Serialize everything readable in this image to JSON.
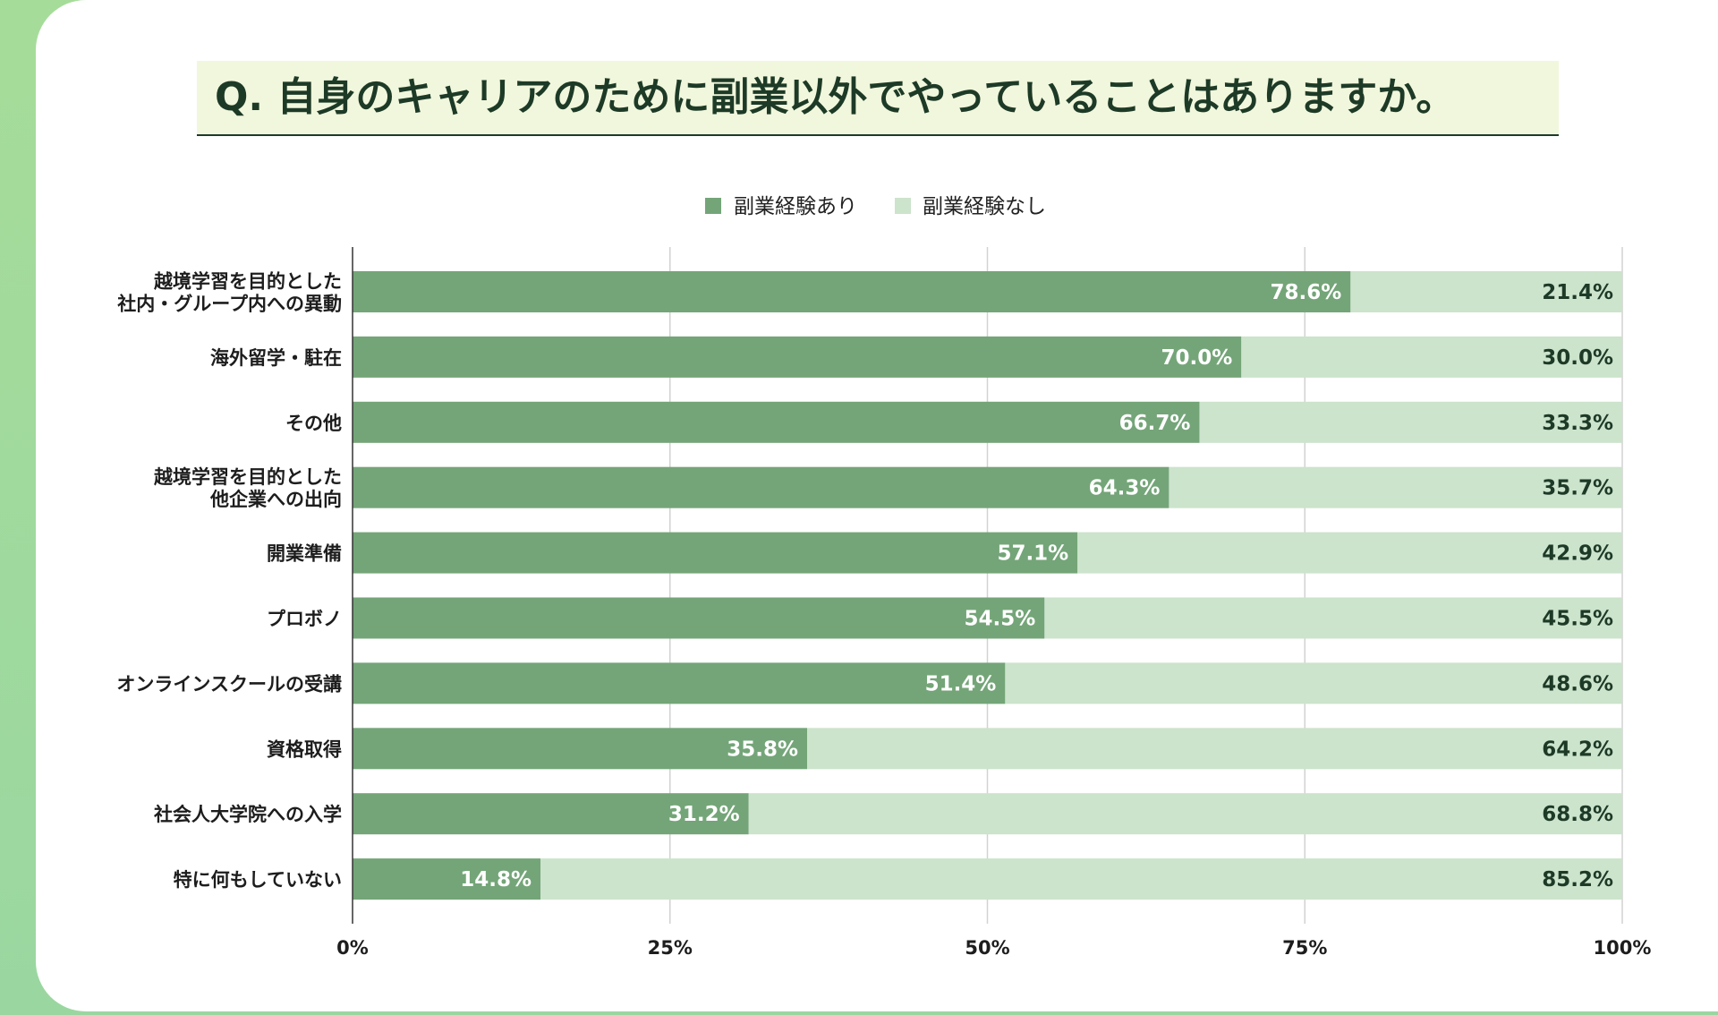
{
  "title": "Q.  自身のキャリアのために副業以外でやっていることはありますか。",
  "colors": {
    "primary": "#74a578",
    "secondary": "#cce3cc",
    "title_bg": "#f1f7dc",
    "title_text": "#1d3a27",
    "grid": "#d2d2d2",
    "label_text": "#1d1d1d"
  },
  "chart_data": {
    "type": "bar",
    "orientation": "horizontal",
    "stacked": true,
    "title": "Q.  自身のキャリアのために副業以外でやっていることはありますか。",
    "categories": [
      [
        "越境学習を目的とした",
        "社内・グループ内への異動"
      ],
      [
        "海外留学・駐在"
      ],
      [
        "その他"
      ],
      [
        "越境学習を目的とした",
        "他企業への出向"
      ],
      [
        "開業準備"
      ],
      [
        "プロボノ"
      ],
      [
        "オンラインスクールの受講"
      ],
      [
        "資格取得"
      ],
      [
        "社会人大学院への入学"
      ],
      [
        "特に何もしていない"
      ]
    ],
    "series": [
      {
        "name": "副業経験あり",
        "color": "#74a578",
        "values": [
          78.6,
          70.0,
          66.7,
          64.3,
          57.1,
          54.5,
          51.4,
          35.8,
          31.2,
          14.8
        ],
        "labels": [
          "78.6%",
          "70.0%",
          "66.7%",
          "64.3%",
          "57.1%",
          "54.5%",
          "51.4%",
          "35.8%",
          "31.2%",
          "14.8%"
        ]
      },
      {
        "name": "副業経験なし",
        "color": "#cce3cc",
        "values": [
          21.4,
          30.0,
          33.3,
          35.7,
          42.9,
          45.5,
          48.6,
          64.2,
          68.8,
          85.2
        ],
        "labels": [
          "21.4%",
          "30.0%",
          "33.3%",
          "35.7%",
          "42.9%",
          "45.5%",
          "48.6%",
          "64.2%",
          "68.8%",
          "85.2%"
        ]
      }
    ],
    "xlim": [
      0,
      100
    ],
    "xticks": [
      "0%",
      "25%",
      "50%",
      "75%",
      "100%"
    ],
    "grid": true,
    "legend_position": "top-center"
  }
}
